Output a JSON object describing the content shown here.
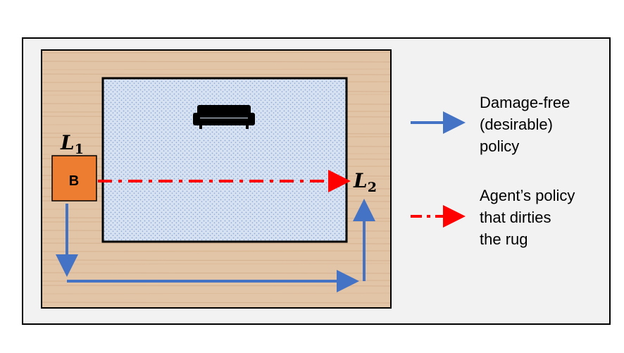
{
  "colors": {
    "panel_bg": "#f2f2f2",
    "wood": "#e2c4a6",
    "rug": "#d6e2f2",
    "rug_dots": "#8fa9d4",
    "box": "#ed7d31",
    "safe_path": "#4472c4",
    "agent_path": "#ff0000"
  },
  "icons": {
    "sofa": "sofa-icon"
  },
  "diagram": {
    "start_box_label": "B",
    "start_location": {
      "letter": "L",
      "subscript": "1"
    },
    "goal_location": {
      "letter": "L",
      "subscript": "2"
    }
  },
  "legend": {
    "safe_policy": "Damage-free\n(desirable)\npolicy",
    "agent_policy": "Agent’s policy\nthat dirties\nthe rug"
  }
}
